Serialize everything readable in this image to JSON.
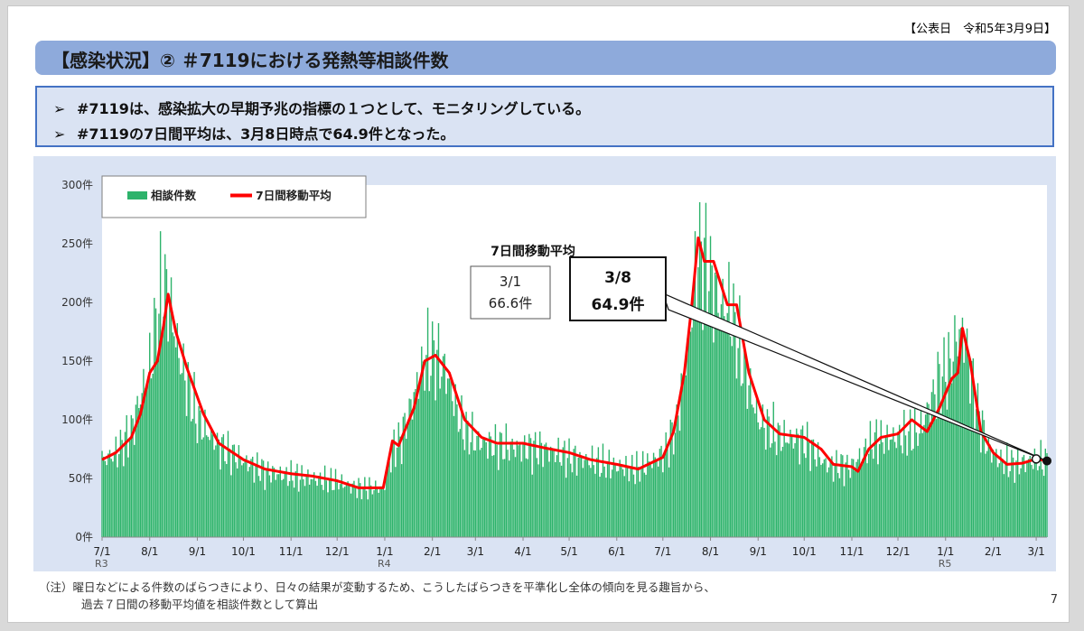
{
  "header": {
    "publish_date": "【公表日　令和5年3月9日】",
    "title": "【感染状況】② ＃7119における発熱等相談件数"
  },
  "summary": {
    "bullet": "➢",
    "line1": "#7119は、感染拡大の早期予兆の指標の１つとして、モニタリングしている。",
    "line2": "#7119の7日間平均は、3月8日時点で64.9件となった。"
  },
  "chart_data": {
    "type": "bar",
    "title": "",
    "xlabel": "",
    "ylabel": "",
    "ylim": [
      0,
      300
    ],
    "yticks": [
      0,
      50,
      100,
      150,
      200,
      250,
      300
    ],
    "ytick_labels": [
      "0件",
      "50件",
      "100件",
      "150件",
      "200件",
      "250件",
      "300件"
    ],
    "date_range": [
      "2021-07-01",
      "2023-03-08"
    ],
    "xtick_labels": [
      "7/1",
      "8/1",
      "9/1",
      "10/1",
      "11/1",
      "12/1",
      "1/1",
      "2/1",
      "3/1",
      "4/1",
      "5/1",
      "6/1",
      "7/1",
      "8/1",
      "9/1",
      "10/1",
      "11/1",
      "12/1",
      "1/1",
      "2/1",
      "3/1"
    ],
    "xtick_dates": [
      "2021-07-01",
      "2021-08-01",
      "2021-09-01",
      "2021-10-01",
      "2021-11-01",
      "2021-12-01",
      "2022-01-01",
      "2022-02-01",
      "2022-03-01",
      "2022-04-01",
      "2022-05-01",
      "2022-06-01",
      "2022-07-01",
      "2022-08-01",
      "2022-09-01",
      "2022-10-01",
      "2022-11-01",
      "2022-12-01",
      "2023-01-01",
      "2023-02-01",
      "2023-03-01"
    ],
    "year_labels": [
      {
        "date": "2021-07-01",
        "label": "R3"
      },
      {
        "date": "2022-01-01",
        "label": "R4"
      },
      {
        "date": "2023-01-01",
        "label": "R5"
      }
    ],
    "series": [
      {
        "name": "相談件数",
        "type": "bar",
        "color": "#2db36b",
        "anchors": [
          [
            "2021-07-01",
            65
          ],
          [
            "2021-07-10",
            72
          ],
          [
            "2021-07-20",
            90
          ],
          [
            "2021-07-26",
            120
          ],
          [
            "2021-08-01",
            145
          ],
          [
            "2021-08-06",
            190
          ],
          [
            "2021-08-10",
            215
          ],
          [
            "2021-08-14",
            200
          ],
          [
            "2021-08-20",
            155
          ],
          [
            "2021-09-01",
            100
          ],
          [
            "2021-09-15",
            78
          ],
          [
            "2021-10-01",
            65
          ],
          [
            "2021-10-15",
            56
          ],
          [
            "2021-11-01",
            52
          ],
          [
            "2021-11-15",
            50
          ],
          [
            "2021-12-01",
            47
          ],
          [
            "2021-12-15",
            42
          ],
          [
            "2021-12-31",
            42
          ],
          [
            "2022-01-06",
            75
          ],
          [
            "2022-01-12",
            85
          ],
          [
            "2022-01-20",
            120
          ],
          [
            "2022-01-28",
            155
          ],
          [
            "2022-02-03",
            155
          ],
          [
            "2022-02-10",
            140
          ],
          [
            "2022-02-20",
            95
          ],
          [
            "2022-03-01",
            82
          ],
          [
            "2022-03-15",
            78
          ],
          [
            "2022-04-01",
            76
          ],
          [
            "2022-04-15",
            75
          ],
          [
            "2022-05-01",
            68
          ],
          [
            "2022-05-15",
            65
          ],
          [
            "2022-06-01",
            60
          ],
          [
            "2022-06-15",
            58
          ],
          [
            "2022-07-01",
            70
          ],
          [
            "2022-07-10",
            95
          ],
          [
            "2022-07-18",
            170
          ],
          [
            "2022-07-24",
            245
          ],
          [
            "2022-07-30",
            230
          ],
          [
            "2022-08-06",
            200
          ],
          [
            "2022-08-14",
            195
          ],
          [
            "2022-08-20",
            160
          ],
          [
            "2022-09-01",
            100
          ],
          [
            "2022-09-15",
            85
          ],
          [
            "2022-10-01",
            82
          ],
          [
            "2022-10-15",
            62
          ],
          [
            "2022-11-01",
            60
          ],
          [
            "2022-11-15",
            82
          ],
          [
            "2022-12-01",
            85
          ],
          [
            "2022-12-15",
            90
          ],
          [
            "2022-12-28",
            135
          ],
          [
            "2023-01-04",
            145
          ],
          [
            "2023-01-08",
            170
          ],
          [
            "2023-01-13",
            175
          ],
          [
            "2023-01-20",
            120
          ],
          [
            "2023-01-28",
            78
          ],
          [
            "2023-02-05",
            66
          ],
          [
            "2023-02-15",
            62
          ],
          [
            "2023-03-01",
            66
          ],
          [
            "2023-03-08",
            64
          ]
        ]
      },
      {
        "name": "7日間移動平均",
        "type": "line",
        "color": "#ff0000",
        "points": [
          [
            "2021-07-01",
            66
          ],
          [
            "2021-07-10",
            72
          ],
          [
            "2021-07-20",
            85
          ],
          [
            "2021-07-26",
            105
          ],
          [
            "2021-08-01",
            140
          ],
          [
            "2021-08-06",
            150
          ],
          [
            "2021-08-10",
            180
          ],
          [
            "2021-08-13",
            207
          ],
          [
            "2021-08-18",
            175
          ],
          [
            "2021-08-25",
            145
          ],
          [
            "2021-09-05",
            105
          ],
          [
            "2021-09-15",
            80
          ],
          [
            "2021-10-01",
            66
          ],
          [
            "2021-10-15",
            58
          ],
          [
            "2021-11-01",
            54
          ],
          [
            "2021-11-15",
            52
          ],
          [
            "2021-12-01",
            48
          ],
          [
            "2021-12-15",
            42
          ],
          [
            "2021-12-31",
            42
          ],
          [
            "2022-01-06",
            82
          ],
          [
            "2022-01-10",
            78
          ],
          [
            "2022-01-20",
            110
          ],
          [
            "2022-01-27",
            150
          ],
          [
            "2022-02-03",
            155
          ],
          [
            "2022-02-12",
            140
          ],
          [
            "2022-02-22",
            100
          ],
          [
            "2022-03-05",
            85
          ],
          [
            "2022-03-15",
            80
          ],
          [
            "2022-04-01",
            80
          ],
          [
            "2022-04-15",
            76
          ],
          [
            "2022-05-01",
            72
          ],
          [
            "2022-05-15",
            66
          ],
          [
            "2022-06-01",
            62
          ],
          [
            "2022-06-15",
            58
          ],
          [
            "2022-07-01",
            68
          ],
          [
            "2022-07-08",
            90
          ],
          [
            "2022-07-15",
            140
          ],
          [
            "2022-07-20",
            200
          ],
          [
            "2022-07-24",
            255
          ],
          [
            "2022-07-28",
            235
          ],
          [
            "2022-08-03",
            235
          ],
          [
            "2022-08-12",
            198
          ],
          [
            "2022-08-18",
            198
          ],
          [
            "2022-08-26",
            140
          ],
          [
            "2022-09-05",
            100
          ],
          [
            "2022-09-15",
            88
          ],
          [
            "2022-10-01",
            85
          ],
          [
            "2022-10-12",
            75
          ],
          [
            "2022-10-20",
            62
          ],
          [
            "2022-11-01",
            60
          ],
          [
            "2022-11-05",
            56
          ],
          [
            "2022-11-12",
            75
          ],
          [
            "2022-11-20",
            85
          ],
          [
            "2022-12-01",
            88
          ],
          [
            "2022-12-10",
            100
          ],
          [
            "2022-12-20",
            90
          ],
          [
            "2022-12-28",
            110
          ],
          [
            "2023-01-05",
            135
          ],
          [
            "2023-01-09",
            140
          ],
          [
            "2023-01-12",
            178
          ],
          [
            "2023-01-17",
            150
          ],
          [
            "2023-01-24",
            90
          ],
          [
            "2023-02-01",
            72
          ],
          [
            "2023-02-10",
            62
          ],
          [
            "2023-02-20",
            63
          ],
          [
            "2023-03-01",
            66.6
          ],
          [
            "2023-03-08",
            64.9
          ]
        ]
      }
    ],
    "legend": {
      "placement": "top-left",
      "bar_label": "相談件数",
      "line_label": "7日間移動平均"
    },
    "annotations": {
      "ma_title": "7日間移動平均",
      "prev": {
        "date": "2023-03-01",
        "label_date": "3/1",
        "label_value": "66.6件",
        "value": 66.6
      },
      "current": {
        "date": "2023-03-08",
        "label_date": "3/8",
        "label_value": "64.9件",
        "value": 64.9
      }
    }
  },
  "footer": {
    "note_line1": "（注）曜日などによる件数のばらつきにより、日々の結果が変動するため、こうしたばらつきを平準化し全体の傾向を見る趣旨から、",
    "note_line2": "過去７日間の移動平均値を相談件数として算出",
    "page_number": "7"
  }
}
